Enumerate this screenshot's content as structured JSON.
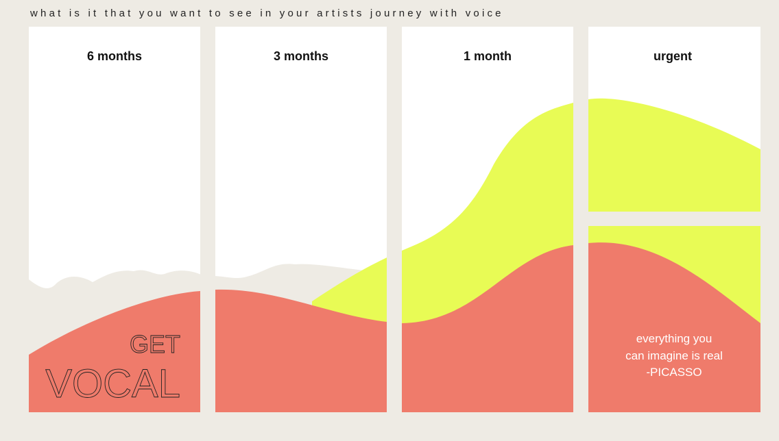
{
  "header": {
    "title": "what is it that you want to see in your artists journey with voice"
  },
  "columns": [
    {
      "label": "6 months"
    },
    {
      "label": "3 months"
    },
    {
      "label": "1 month"
    },
    {
      "label": "urgent"
    }
  ],
  "slogan": {
    "line1": "GET",
    "line2": "VOCAL"
  },
  "quote": {
    "lines": [
      "everything you",
      "can imagine is real",
      "-PICASSO"
    ]
  }
}
